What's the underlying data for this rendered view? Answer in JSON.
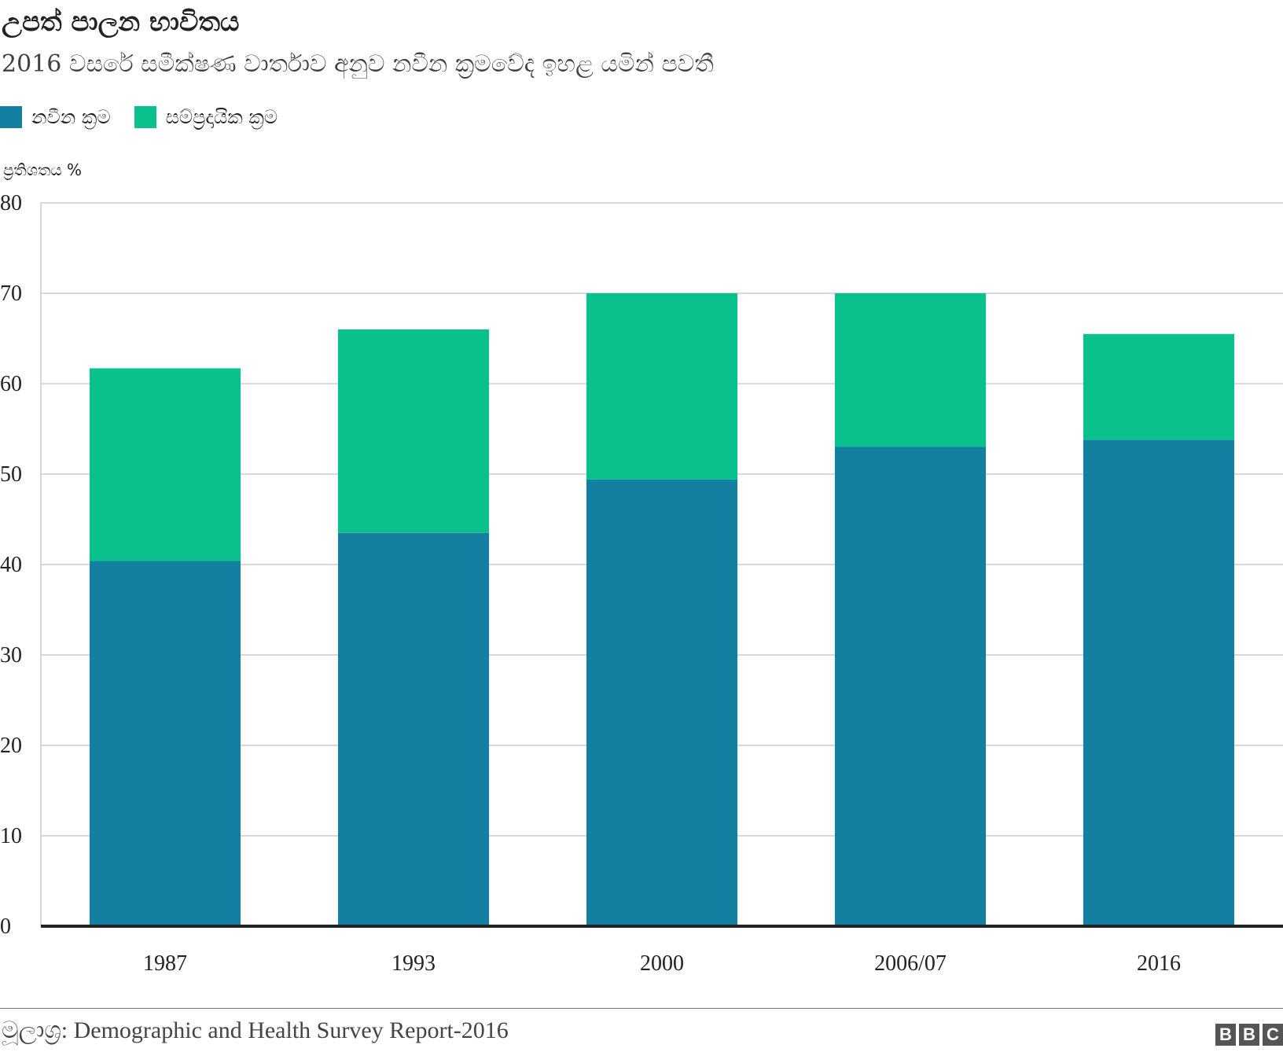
{
  "header": {
    "title": "උපත් පාලන භාවිතය",
    "subtitle": "2016 වසරේ සමීක්ෂණ වාර්තාව අනුව නවීන ක්‍රමවේද ඉහළ යමින් පවතී"
  },
  "legend": {
    "items": [
      {
        "label": "නවීන ක්‍රම",
        "color": "#1380a1"
      },
      {
        "label": "සම්ප්‍රදායික ක්‍රම",
        "color": "#0ac18e"
      }
    ]
  },
  "footer": {
    "source": "මූලාශ්‍ර: Demographic and Health Survey Report-2016",
    "logo_letters": [
      "B",
      "B",
      "C"
    ]
  },
  "chart_data": {
    "type": "bar",
    "stacked": true,
    "title": "උපත් පාලන භාවිතය",
    "ylabel": "ප්‍රතිශතය %",
    "xlabel": "",
    "categories": [
      "1987",
      "1993",
      "2000",
      "2006/07",
      "2016"
    ],
    "series": [
      {
        "name": "නවීන ක්‍රම",
        "color": "#1380a1",
        "values": [
          40.4,
          43.5,
          49.4,
          53.0,
          53.8
        ]
      },
      {
        "name": "සම්ප්‍රදායික ක්‍රම",
        "color": "#0ac18e",
        "values": [
          21.3,
          22.5,
          20.6,
          17.0,
          11.7
        ]
      }
    ],
    "ylim": [
      0,
      80
    ],
    "yticks": [
      0,
      10,
      20,
      30,
      40,
      50,
      60,
      70,
      80
    ],
    "grid": true,
    "legend_position": "top-left"
  }
}
